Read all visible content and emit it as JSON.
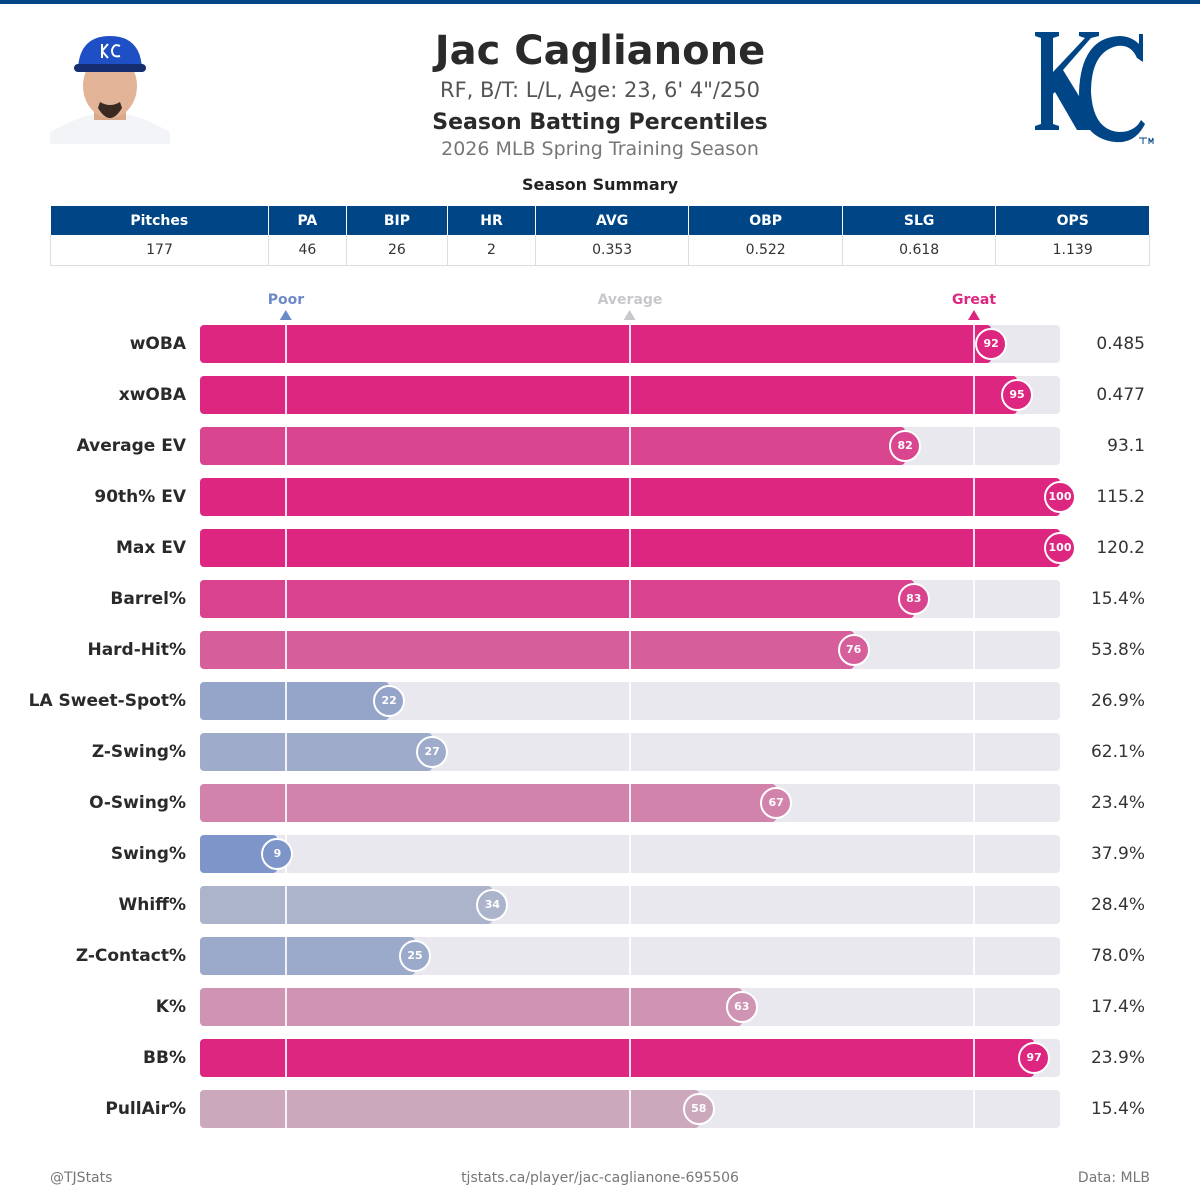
{
  "header": {
    "name": "Jac Caglianone",
    "info": "RF, B/T: L/L, Age: 23, 6' 4\"/250",
    "subtitle": "Season Batting Percentiles",
    "season": "2026 MLB Spring Training Season",
    "logo_text": "KC"
  },
  "summary": {
    "title": "Season Summary",
    "columns": [
      "Pitches",
      "PA",
      "BIP",
      "HR",
      "AVG",
      "OBP",
      "SLG",
      "OPS"
    ],
    "values": [
      "177",
      "46",
      "26",
      "2",
      "0.353",
      "0.522",
      "0.618",
      "1.139"
    ]
  },
  "colors": {
    "brand": "#004687",
    "poor": "#6d8ac8",
    "average": "#c8c8cc",
    "great": "#dd2680"
  },
  "chart_data": {
    "type": "bar",
    "orientation": "horizontal",
    "xlim": [
      0,
      100
    ],
    "markers": [
      {
        "label": "Poor",
        "value": 10
      },
      {
        "label": "Average",
        "value": 50
      },
      {
        "label": "Great",
        "value": 90
      }
    ],
    "categories": [
      "wOBA",
      "xwOBA",
      "Average EV",
      "90th% EV",
      "Max EV",
      "Barrel%",
      "Hard-Hit%",
      "LA Sweet-Spot%",
      "Z-Swing%",
      "O-Swing%",
      "Swing%",
      "Whiff%",
      "Z-Contact%",
      "K%",
      "BB%",
      "PullAir%"
    ],
    "percentiles": [
      92,
      95,
      82,
      100,
      100,
      83,
      76,
      22,
      27,
      67,
      9,
      34,
      25,
      63,
      97,
      58
    ],
    "values": [
      "0.485",
      "0.477",
      "93.1",
      "115.2",
      "120.2",
      "15.4%",
      "53.8%",
      "26.9%",
      "62.1%",
      "23.4%",
      "37.9%",
      "28.4%",
      "78.0%",
      "17.4%",
      "23.9%",
      "15.4%"
    ]
  },
  "footer": {
    "left": "@TJStats",
    "center": "tjstats.ca/player/jac-caglianone-695506",
    "right": "Data: MLB"
  }
}
